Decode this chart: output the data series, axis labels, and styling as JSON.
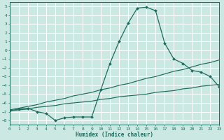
{
  "xlabel": "Humidex (Indice chaleur)",
  "bg_color": "#cce8e3",
  "grid_color": "#ffffff",
  "line_color": "#1e6b5e",
  "xlim": [
    0,
    23
  ],
  "ylim": [
    -8.5,
    5.5
  ],
  "yticks": [
    5,
    4,
    3,
    2,
    1,
    0,
    -1,
    -2,
    -3,
    -4,
    -5,
    -6,
    -7,
    -8
  ],
  "xticks": [
    0,
    1,
    2,
    3,
    4,
    5,
    6,
    7,
    8,
    9,
    10,
    11,
    12,
    13,
    14,
    15,
    16,
    17,
    18,
    19,
    20,
    21,
    22,
    23
  ],
  "line1_x": [
    0,
    1,
    2,
    3,
    4,
    5,
    6,
    7,
    8,
    9,
    10,
    11,
    12,
    13,
    14,
    15,
    16,
    17,
    18,
    19,
    20,
    21,
    22,
    23
  ],
  "line1_y": [
    -6.9,
    -6.8,
    -6.7,
    -6.5,
    -6.4,
    -6.3,
    -6.1,
    -6.0,
    -5.9,
    -5.8,
    -5.6,
    -5.5,
    -5.3,
    -5.2,
    -5.1,
    -5.0,
    -4.8,
    -4.7,
    -4.6,
    -4.4,
    -4.3,
    -4.1,
    -4.0,
    -3.9
  ],
  "line2_x": [
    0,
    1,
    2,
    3,
    4,
    5,
    6,
    7,
    8,
    9,
    10,
    11,
    12,
    13,
    14,
    15,
    16,
    17,
    18,
    19,
    20,
    21,
    22,
    23
  ],
  "line2_y": [
    -6.8,
    -6.6,
    -6.4,
    -6.2,
    -5.9,
    -5.7,
    -5.5,
    -5.2,
    -5.0,
    -4.8,
    -4.5,
    -4.3,
    -4.0,
    -3.8,
    -3.5,
    -3.2,
    -3.0,
    -2.7,
    -2.4,
    -2.2,
    -1.9,
    -1.6,
    -1.4,
    -1.1
  ],
  "line3_x": [
    0,
    1,
    2,
    3,
    4,
    5,
    6,
    7,
    8,
    9,
    10,
    11,
    12,
    13,
    14,
    15,
    16,
    17,
    18,
    19,
    20,
    21,
    22,
    23
  ],
  "line3_y": [
    -6.9,
    -6.7,
    -6.6,
    -7.0,
    -7.2,
    -8.0,
    -7.7,
    -7.6,
    -7.6,
    -7.6,
    -4.5,
    -1.5,
    1.0,
    3.1,
    4.8,
    4.9,
    4.5,
    0.8,
    -1.0,
    -1.5,
    -2.3,
    -2.5,
    -3.0,
    -4.2
  ]
}
